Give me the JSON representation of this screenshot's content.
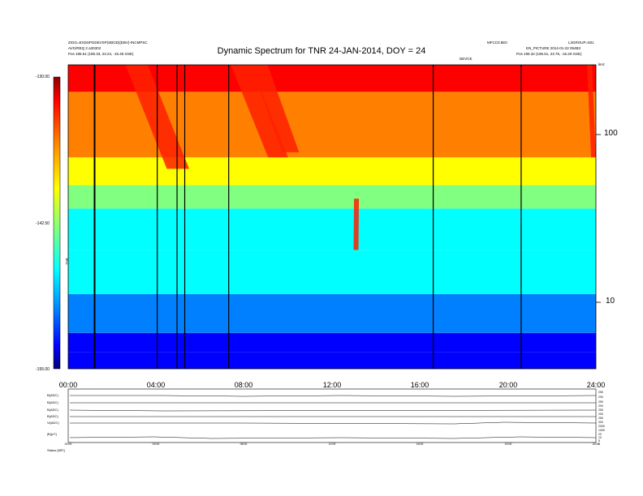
{
  "header": {
    "title": "Dynamic Spectrum for TNR 24-JAN-2014, DOY = 24",
    "meta_left_1": "ZIGG=EXDSPGDEVSP(SBOD)(EBV)-INCMPSC",
    "meta_left_2": "AVG/REQ 2 a30302",
    "meta_left_3": "Pos     195.51 (195.33, 23.24, -15.45 GSE)",
    "meta_mid": "MFCC0.5E0",
    "meta_right_1": "L3GROUP=501",
    "meta_right_2": "EN_PICTURE 2014-01-22 054B3",
    "meta_right_3": "Pos     195.32 (195.51, 23.76, -15.20 GSE)",
    "meta_mid2": "DEVCE",
    "meta_khz": "kHz"
  },
  "colorbar": {
    "top_label": "-130.00",
    "mid_label": "-142.50",
    "bottom_label": "-155.00",
    "axis_label": "TNR",
    "colors": [
      "#00007a",
      "#0000ff",
      "#0080ff",
      "#00ffff",
      "#80ff80",
      "#ffff00",
      "#ff8000",
      "#ff0000",
      "#800000"
    ]
  },
  "right_axis": {
    "ticks": [
      "100",
      "10"
    ]
  },
  "strip": {
    "left_labels": [
      "B(ADC)",
      "B(ADC)",
      "B(ADC)",
      "B(ADC)",
      "Vl(ADC)",
      "|B|(nT)"
    ],
    "right_labels": [
      "250",
      "200",
      "250",
      "200",
      "250",
      "200",
      "250",
      "200",
      "2000",
      "1000",
      "20",
      "10",
      "5",
      "0"
    ],
    "x_ticks": [
      "00:00",
      "04:00",
      "08:00",
      "12:00",
      "16:00",
      "20:00",
      "24:00"
    ],
    "footer": "Status  [MFI]"
  },
  "chart_data": {
    "type": "heatmap",
    "title": "Dynamic Spectrum for TNR 24-JAN-2014, DOY = 24",
    "xlabel": "",
    "ylabel": "TNR",
    "x_ticks": [
      "00:00",
      "04:00",
      "08:00",
      "12:00",
      "16:00",
      "20:00",
      "24:00"
    ],
    "x_range_hours": [
      0,
      24
    ],
    "y_scale": "log",
    "y_ticks_khz": [
      10,
      100
    ],
    "y_range_khz": [
      4,
      245
    ],
    "color_range_db": [
      -155.0,
      -130.0
    ],
    "color_ticks_db": [
      -130.0,
      -142.5,
      -155.0
    ],
    "vertical_gaps_hours": [
      1.2,
      4.05,
      4.95,
      5.3,
      7.3,
      16.6,
      20.6
    ],
    "bands": [
      {
        "f_low_khz": 4.0,
        "f_high_khz": 5.0,
        "db": -155.0
      },
      {
        "f_low_khz": 5.0,
        "f_high_khz": 6.5,
        "db": -154.0
      },
      {
        "f_low_khz": 6.5,
        "f_high_khz": 11.0,
        "db": -151.0
      },
      {
        "f_low_khz": 11.0,
        "f_high_khz": 20.0,
        "db": -148.5
      },
      {
        "f_low_khz": 20.0,
        "f_high_khz": 35.0,
        "db": -146.0
      },
      {
        "f_low_khz": 35.0,
        "f_high_khz": 48.0,
        "db": -143.0
      },
      {
        "f_low_khz": 48.0,
        "f_high_khz": 70.0,
        "db": -141.0
      },
      {
        "f_low_khz": 70.0,
        "f_high_khz": 110.0,
        "db": -139.0
      },
      {
        "f_low_khz": 110.0,
        "f_high_khz": 170.0,
        "db": -137.0
      },
      {
        "f_low_khz": 170.0,
        "f_high_khz": 245.0,
        "db": -134.0
      }
    ],
    "bursts": [
      {
        "t_start_hours": 2.6,
        "t_end_hours": 5.5,
        "f_high_khz": 245,
        "f_low_khz": 60,
        "db": -130.0
      },
      {
        "t_start_hours": 7.4,
        "t_end_hours": 10.0,
        "f_high_khz": 245,
        "f_low_khz": 70,
        "db": -130.0
      },
      {
        "t_start_hours": 8.3,
        "t_end_hours": 10.5,
        "f_high_khz": 245,
        "f_low_khz": 75,
        "db": -131.0
      },
      {
        "t_start_hours": 23.6,
        "t_end_hours": 24.0,
        "f_high_khz": 245,
        "f_low_khz": 70,
        "db": -130.0
      },
      {
        "t_start_hours": 13.0,
        "t_end_hours": 13.2,
        "f_high_khz": 40,
        "f_low_khz": 20,
        "db": -132.0
      }
    ]
  }
}
